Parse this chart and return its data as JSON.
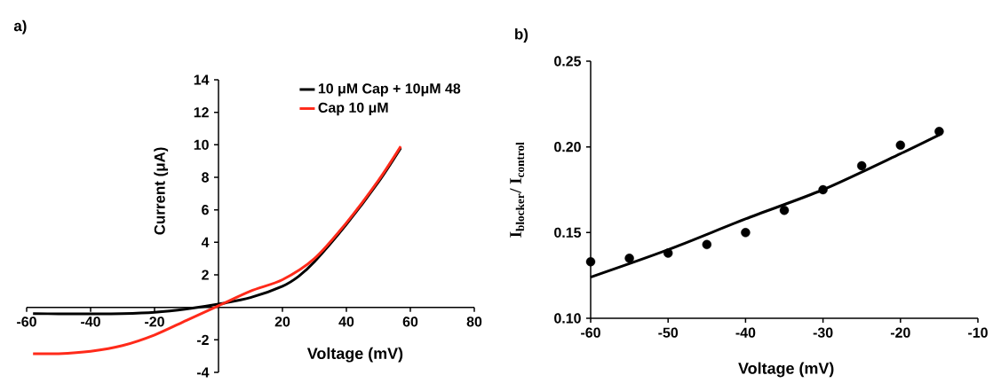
{
  "chart_data": [
    {
      "type": "line",
      "title": "a)",
      "xlabel": "Voltage (mV)",
      "ylabel": "Current (μA)",
      "xlim": [
        -60,
        80
      ],
      "ylim": [
        -4,
        14
      ],
      "xticks": [
        -60,
        -40,
        -20,
        20,
        40,
        60,
        80
      ],
      "yticks": [
        -4,
        -2,
        2,
        4,
        6,
        8,
        10,
        12,
        14
      ],
      "legend": "top right",
      "marker": "none",
      "series": [
        {
          "name": "10 μM Cap + 10μM 48",
          "color": "#000000",
          "x": [
            -58,
            -50,
            -40,
            -30,
            -20,
            -10,
            0,
            10,
            20,
            25,
            30,
            40,
            50,
            57
          ],
          "values": [
            -0.38,
            -0.4,
            -0.4,
            -0.38,
            -0.3,
            -0.1,
            0.2,
            0.6,
            1.3,
            1.9,
            2.8,
            5.1,
            7.7,
            9.8
          ]
        },
        {
          "name": "Cap 10 μM",
          "color": "#ff2a1a",
          "x": [
            -58,
            -50,
            -40,
            -30,
            -20,
            -10,
            0,
            10,
            20,
            30,
            40,
            50,
            57
          ],
          "values": [
            -2.85,
            -2.85,
            -2.7,
            -2.35,
            -1.7,
            -0.8,
            0.1,
            1.0,
            1.7,
            3.0,
            5.2,
            7.8,
            9.9
          ]
        }
      ]
    },
    {
      "type": "scatter",
      "title": "b)",
      "xlabel": "Voltage (mV)",
      "ylabel": "I$_{blocker}$/ I$_{control}$",
      "xlim": [
        -60,
        -10
      ],
      "ylim": [
        0.1,
        0.25
      ],
      "xticks": [
        -60,
        -50,
        -40,
        -30,
        -20,
        -10
      ],
      "yticks": [
        {
          "value": 0.1,
          "label": "0.10"
        },
        {
          "value": 0.15,
          "label": "0.15"
        },
        {
          "value": 0.2,
          "label": "0.20"
        },
        {
          "value": 0.25,
          "label": "0.25"
        }
      ],
      "marker": "circle",
      "series": [
        {
          "color": "#000000",
          "x": [
            -60,
            -55,
            -50,
            -45,
            -40,
            -35,
            -30,
            -25,
            -20,
            -15
          ],
          "values": [
            0.133,
            0.135,
            0.138,
            0.143,
            0.15,
            0.163,
            0.175,
            0.189,
            0.201,
            0.209
          ]
        },
        {
          "type": "line",
          "marker": "none",
          "color": "#000000",
          "x": [
            -60,
            -50,
            -40,
            -30,
            -20,
            -15
          ],
          "values": [
            0.124,
            0.14,
            0.158,
            0.175,
            0.196,
            0.207
          ]
        }
      ]
    }
  ]
}
